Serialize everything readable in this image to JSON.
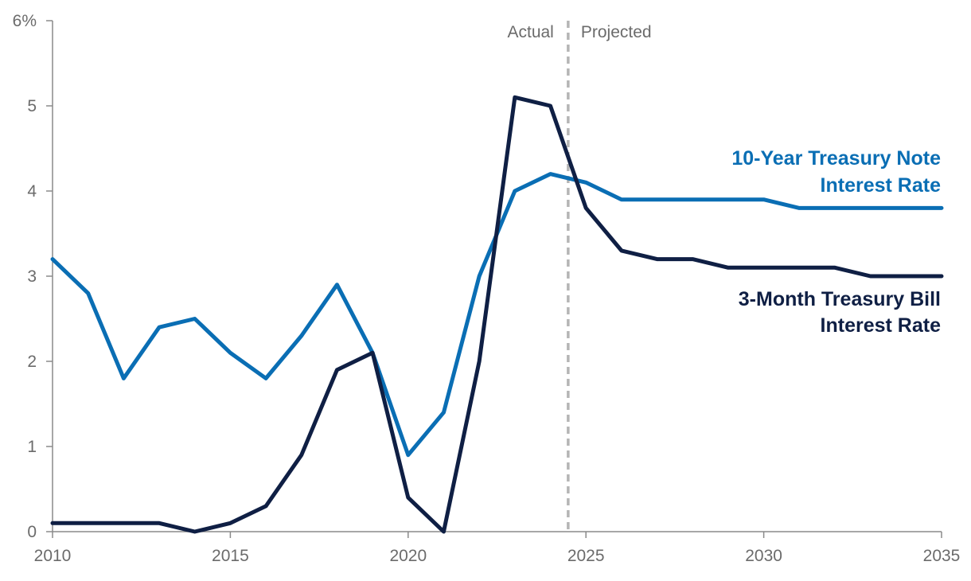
{
  "chart_data": {
    "type": "line",
    "x": [
      2010,
      2011,
      2012,
      2013,
      2014,
      2015,
      2016,
      2017,
      2018,
      2019,
      2020,
      2021,
      2022,
      2023,
      2024,
      2025,
      2026,
      2027,
      2028,
      2029,
      2030,
      2031,
      2032,
      2033,
      2034,
      2035
    ],
    "series": [
      {
        "name_lines": [
          "10-Year Treasury Note",
          "Interest Rate"
        ],
        "color": "#0a6eb4",
        "values": [
          3.2,
          2.8,
          1.8,
          2.4,
          2.5,
          2.1,
          1.8,
          2.3,
          2.9,
          2.1,
          0.9,
          1.4,
          3.0,
          4.0,
          4.2,
          4.1,
          3.9,
          3.9,
          3.9,
          3.9,
          3.9,
          3.8,
          3.8,
          3.8,
          3.8,
          3.8
        ]
      },
      {
        "name_lines": [
          "3-Month Treasury Bill",
          "Interest Rate"
        ],
        "color": "#0f1f44",
        "values": [
          0.1,
          0.1,
          0.1,
          0.1,
          0.0,
          0.1,
          0.3,
          0.9,
          1.9,
          2.1,
          0.4,
          0.0,
          2.0,
          5.1,
          5.0,
          3.8,
          3.3,
          3.2,
          3.2,
          3.1,
          3.1,
          3.1,
          3.1,
          3.0,
          3.0,
          3.0
        ]
      }
    ],
    "xlim": [
      2010,
      2035
    ],
    "ylim": [
      0,
      6
    ],
    "x_ticks": [
      "2010",
      "2015",
      "2020",
      "2025",
      "2030",
      "2035"
    ],
    "y_ticks": [
      "0",
      "1",
      "2",
      "3",
      "4",
      "5",
      "6%"
    ],
    "divider_x": 2024.5,
    "region_labels": {
      "left": "Actual",
      "right": "Projected"
    },
    "grid": false,
    "legend": "inline-right"
  }
}
